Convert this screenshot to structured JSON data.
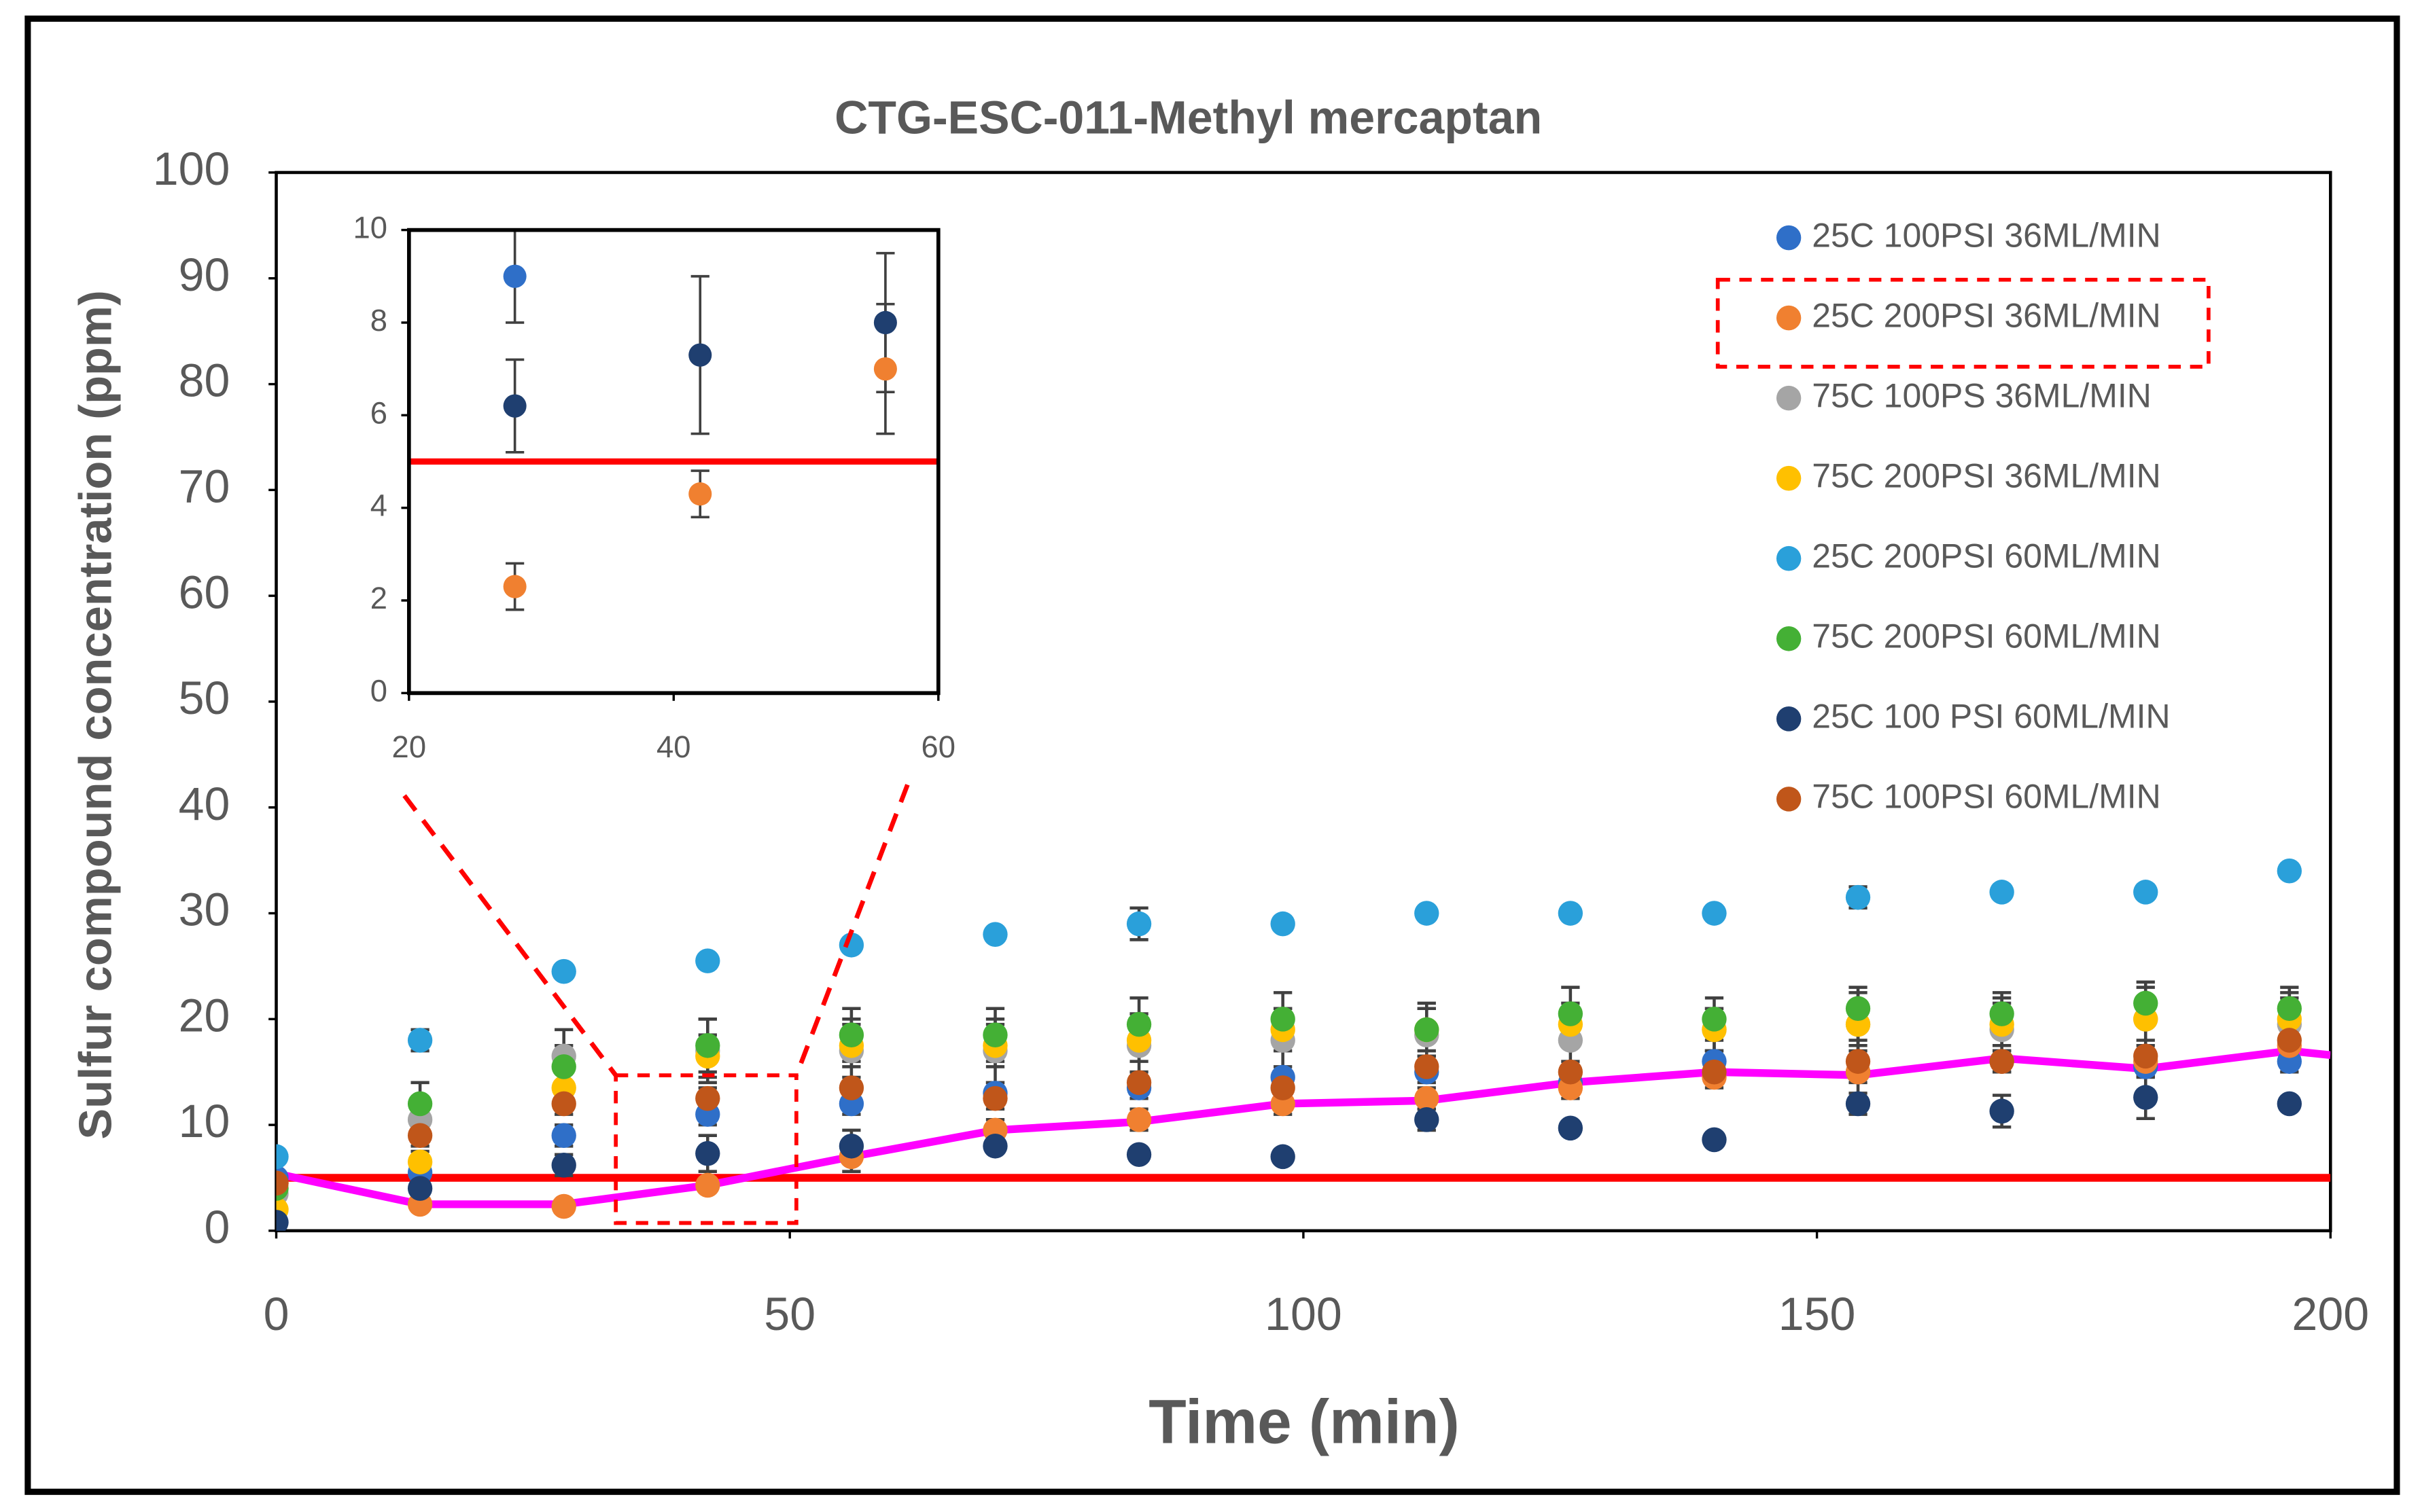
{
  "chart_data": [
    {
      "type": "scatter",
      "title": "CTG-ESC-011-Methyl mercaptan",
      "x_label": "Time (min)",
      "y_label": "Sulfur compound concentration (ppm)",
      "x": [
        0,
        14,
        28,
        42,
        56,
        70,
        84,
        98,
        112,
        126,
        140,
        154,
        168,
        182,
        196
      ],
      "xlim": [
        0,
        200
      ],
      "xticks": [
        0,
        50,
        100,
        150,
        200
      ],
      "ylim": [
        0,
        100
      ],
      "yticks": [
        0,
        10,
        20,
        30,
        40,
        50,
        60,
        70,
        80,
        90,
        100
      ],
      "series": [
        {
          "name": "25C 100PSI 36ML/MIN",
          "color": "#2f6fc8",
          "values": [
            5,
            5.5,
            9,
            11,
            12,
            13,
            13.5,
            14.5,
            15,
            14,
            16,
            15,
            16,
            15.5,
            16
          ],
          "errors": [
            0.5,
            1,
            1,
            1,
            1,
            1,
            1,
            1,
            1,
            1,
            1,
            3,
            1,
            1,
            1
          ]
        },
        {
          "name": "25C 200PSI 36ML/MIN",
          "color": "#f08030",
          "values": [
            4.5,
            2.5,
            2.3,
            4.3,
            7,
            9.5,
            10.5,
            12,
            12.5,
            13.5,
            14.5,
            15,
            16,
            16,
            17.5
          ],
          "errors": [
            0.5,
            0.5,
            0.5,
            0.5,
            1.4,
            1,
            1,
            1,
            1,
            1,
            1,
            1,
            1,
            1,
            1
          ]
        },
        {
          "name": "75C 100PS 36ML/MIN",
          "color": "#a5a5a5",
          "values": [
            3.5,
            10.5,
            16.5,
            17,
            17,
            17,
            17.5,
            18,
            18.5,
            18,
            19,
            19.5,
            19,
            20,
            19.5
          ],
          "errors": [
            1,
            2,
            2.5,
            3,
            3,
            3,
            3,
            3,
            2.5,
            3,
            2,
            3,
            3,
            3,
            3
          ]
        },
        {
          "name": "75C 200PSI 36ML/MIN",
          "color": "#ffc000",
          "values": [
            2,
            6.5,
            13.5,
            16.5,
            17.5,
            17.5,
            18,
            19,
            19,
            19.5,
            19,
            19.5,
            19.5,
            20,
            20
          ],
          "errors": [
            0.5,
            1,
            1.5,
            2,
            2,
            2,
            2,
            2,
            2,
            2,
            2,
            2,
            2,
            2,
            2
          ]
        },
        {
          "name": "25C 200PSI 60ML/MIN",
          "color": "#2aa0da",
          "values": [
            7,
            18,
            24.5,
            25.5,
            27,
            28,
            29,
            29,
            30,
            30,
            30,
            31.5,
            32,
            32,
            34
          ],
          "errors": [
            0.5,
            1,
            0.5,
            0.5,
            0.5,
            0.5,
            1.5,
            0.5,
            0.5,
            0.5,
            0.5,
            1,
            0.5,
            0.5,
            0.5
          ]
        },
        {
          "name": "75C 200PSI 60ML/MIN",
          "color": "#44b035",
          "values": [
            4,
            12,
            15.5,
            17.5,
            18.5,
            18.5,
            19.5,
            20,
            19,
            20.5,
            20,
            21,
            20.5,
            21.5,
            21
          ],
          "errors": [
            0.5,
            2,
            2,
            2.5,
            2.5,
            2.5,
            2.5,
            2.5,
            2.5,
            2.5,
            2,
            2,
            2,
            2,
            2
          ]
        },
        {
          "name": "25C 100 PSI 60ML/MIN",
          "color": "#1f3f70",
          "values": [
            0.8,
            4,
            6.2,
            7.3,
            8,
            8,
            7.2,
            7,
            10.5,
            9.7,
            8.6,
            12,
            11.3,
            12.6,
            12
          ],
          "errors": [
            0.3,
            0.5,
            1,
            1.7,
            1.5,
            0.5,
            0.5,
            0.5,
            1,
            0.5,
            0.5,
            1,
            1.5,
            2,
            0.5
          ]
        },
        {
          "name": "75C 100PSI 60ML/MIN",
          "color": "#c0561a",
          "values": [
            4.5,
            9,
            12,
            12.5,
            13.5,
            12.5,
            14,
            13.5,
            15.5,
            15,
            15,
            16,
            16,
            16.5,
            18
          ],
          "errors": [
            0.5,
            1,
            1,
            1,
            1,
            1,
            1,
            1,
            1,
            1,
            1,
            1,
            1,
            1,
            1
          ]
        }
      ],
      "trend": {
        "color": "#ff00ff",
        "x": [
          0,
          14,
          28,
          42,
          56,
          70,
          84,
          98,
          112,
          126,
          140,
          154,
          168,
          182,
          196,
          200
        ],
        "values": [
          5.4,
          2.5,
          2.5,
          4.3,
          7,
          9.5,
          10.3,
          12,
          12.3,
          14,
          15,
          14.7,
          16.3,
          15.3,
          17,
          16.6
        ]
      },
      "threshold": {
        "value": 5,
        "color": "#ff0000"
      }
    },
    {
      "type": "inset",
      "xlim": [
        20,
        60
      ],
      "xticks": [
        20,
        40,
        60
      ],
      "ylim": [
        0,
        10
      ],
      "yticks": [
        0,
        2,
        4,
        6,
        8,
        10
      ]
    }
  ]
}
